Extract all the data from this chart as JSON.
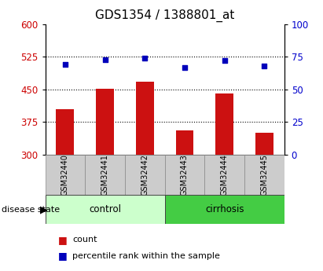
{
  "title": "GDS1354 / 1388801_at",
  "samples": [
    "GSM32440",
    "GSM32441",
    "GSM32442",
    "GSM32443",
    "GSM32444",
    "GSM32445"
  ],
  "count_values": [
    405,
    451,
    468,
    355,
    440,
    350
  ],
  "percentile_values": [
    69,
    73,
    74,
    67,
    72,
    68
  ],
  "ylim_left": [
    300,
    600
  ],
  "ylim_right": [
    0,
    100
  ],
  "yticks_left": [
    300,
    375,
    450,
    525,
    600
  ],
  "yticks_right": [
    0,
    25,
    50,
    75,
    100
  ],
  "bar_color": "#cc1111",
  "dot_color": "#0000bb",
  "bar_bottom": 300,
  "groups": [
    {
      "label": "control",
      "start": 0,
      "end": 2,
      "color": "#ccffcc"
    },
    {
      "label": "cirrhosis",
      "start": 3,
      "end": 5,
      "color": "#44cc44"
    }
  ],
  "disease_state_label": "disease state",
  "legend_count_label": "count",
  "legend_pct_label": "percentile rank within the sample",
  "grid_color": "black",
  "axis_label_color_left": "#cc0000",
  "axis_label_color_right": "#0000cc",
  "sample_box_color": "#cccccc",
  "title_fontsize": 11,
  "tick_fontsize": 8.5,
  "sample_fontsize": 7,
  "group_fontsize": 8.5,
  "legend_fontsize": 8
}
